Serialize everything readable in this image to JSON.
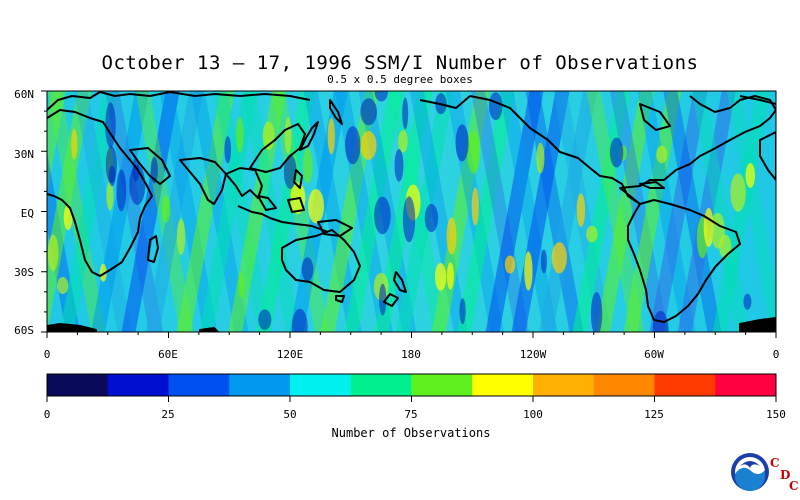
{
  "map": {
    "title": "October 13 – 17, 1996 SSM/I Number of Observations",
    "subtitle": "0.5 x 0.5 degree boxes",
    "lat_labels": [
      "60N",
      "30N",
      "EQ",
      "30S",
      "60S"
    ],
    "lon_labels": [
      "0",
      "60E",
      "120E",
      "180",
      "120W",
      "60W",
      "0"
    ],
    "projection": "equirectangular",
    "lat_range": [
      -60,
      60
    ],
    "lon_range": [
      0,
      360
    ]
  },
  "colorbar": {
    "label": "Number of Observations",
    "ticks": [
      "0",
      "25",
      "50",
      "75",
      "100",
      "125",
      "150"
    ],
    "range": [
      0,
      150
    ],
    "colors": [
      "#0a0a5a",
      "#0010d0",
      "#0050f0",
      "#0099f0",
      "#00f0f0",
      "#00f090",
      "#60f020",
      "#ffff00",
      "#ffb000",
      "#ff8800",
      "#ff3a00",
      "#ff0040"
    ]
  },
  "logo": {
    "org": "NOAA",
    "letters": [
      "C",
      "D",
      "C"
    ]
  }
}
